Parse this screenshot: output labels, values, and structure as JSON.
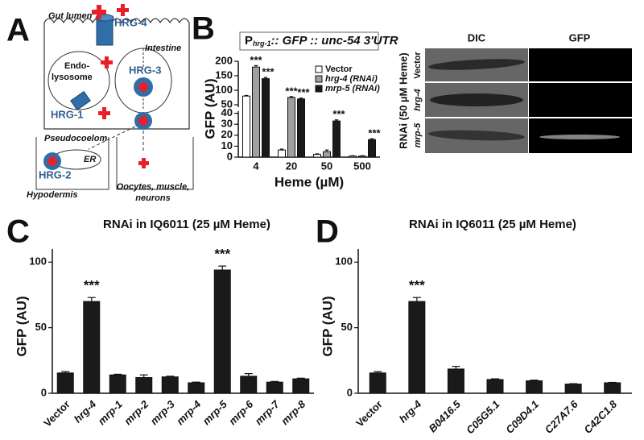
{
  "diagram": {
    "panel_label": "A",
    "gut_lumen": "Gut lumen",
    "hrg4": "HRG-4",
    "endo": "Endo-",
    "lysosome": "lysosome",
    "intestine": "Intestine",
    "hrg3": "HRG-3",
    "hrg1": "HRG-1",
    "pseudocoelom": "Pseudocoelom",
    "er": "ER",
    "hrg2": "HRG-2",
    "hypodermis": "Hypodermis",
    "targets_1": "Oocytes, muscle,",
    "targets_2": "neurons"
  },
  "micrographs": {
    "columns": [
      "DIC",
      "GFP"
    ],
    "rows": [
      "Vector",
      "hrg-4",
      "mrp-5"
    ],
    "side_label": "RNAi (50 µM Heme)"
  },
  "chart_data": [
    {
      "type": "bar",
      "panel_label": "B",
      "title_prefix": "P",
      "title_subscript": "hrg-1",
      "title_rest": ":: GFP :: unc-54 3'UTR",
      "xlabel": "Heme (µM)",
      "ylabel": "GFP (AU)",
      "categories": [
        "4",
        "20",
        "50",
        "500"
      ],
      "series": [
        {
          "name": "Vector",
          "color": "#ffffff",
          "values": [
            80,
            6.5,
            2.5,
            1
          ],
          "errors": [
            2,
            0.8,
            0.5,
            0.3
          ],
          "annotations": [
            null,
            null,
            null,
            null
          ]
        },
        {
          "name": "hrg-4 (RNAi)",
          "color": "#a0a0a0",
          "values": [
            180,
            75,
            5,
            1
          ],
          "errors": [
            5,
            3,
            1.5,
            0.3
          ],
          "annotations": [
            "***",
            "***",
            null,
            null
          ]
        },
        {
          "name": "mrp-5 (RNAi)",
          "color": "#1a1a1a",
          "values": [
            140,
            70,
            33,
            16
          ],
          "errors": [
            4,
            3,
            1,
            0.8
          ],
          "annotations": [
            "***",
            "***",
            "***",
            "***"
          ]
        }
      ],
      "ylim": [
        0,
        200
      ],
      "ybreak": 42,
      "yticks": [
        0,
        10,
        20,
        30,
        40,
        50,
        100,
        150,
        200
      ],
      "legend": "upper right"
    },
    {
      "type": "bar",
      "panel_label": "C",
      "title": "RNAi in IQ6011 (25 µM Heme)",
      "ylabel": "GFP (AU)",
      "categories": [
        "Vector",
        "hrg-4",
        "mrp-1",
        "mrp-2",
        "mrp-3",
        "mrp-4",
        "mrp-5",
        "mrp-6",
        "mrp-7",
        "mrp-8"
      ],
      "values": [
        15.5,
        70,
        14,
        12,
        12.5,
        8,
        94,
        13,
        8.5,
        11
      ],
      "errors": [
        1,
        3,
        0.5,
        2,
        0.5,
        0.5,
        3,
        2,
        0.5,
        0.5
      ],
      "annotations": [
        null,
        "***",
        null,
        null,
        null,
        null,
        "***",
        null,
        null,
        null
      ],
      "color": "#1a1a1a",
      "ylim": [
        0,
        110
      ],
      "yticks": [
        0,
        50,
        100
      ]
    },
    {
      "type": "bar",
      "panel_label": "D",
      "title": "RNAi in IQ6011 (25 µM Heme)",
      "ylabel": "GFP (AU)",
      "categories": [
        "Vector",
        "hrg-4",
        "B0416.5",
        "C05G5.1",
        "C09D4.1",
        "C27A7.6",
        "C42C1.8"
      ],
      "values": [
        15.5,
        70,
        18.5,
        10.5,
        9.5,
        7,
        8
      ],
      "errors": [
        1,
        3,
        2,
        0.5,
        0.5,
        0.3,
        0.3
      ],
      "annotations": [
        null,
        "***",
        null,
        null,
        null,
        null,
        null
      ],
      "color": "#1a1a1a",
      "ylim": [
        0,
        110
      ],
      "yticks": [
        0,
        50,
        100
      ]
    }
  ]
}
